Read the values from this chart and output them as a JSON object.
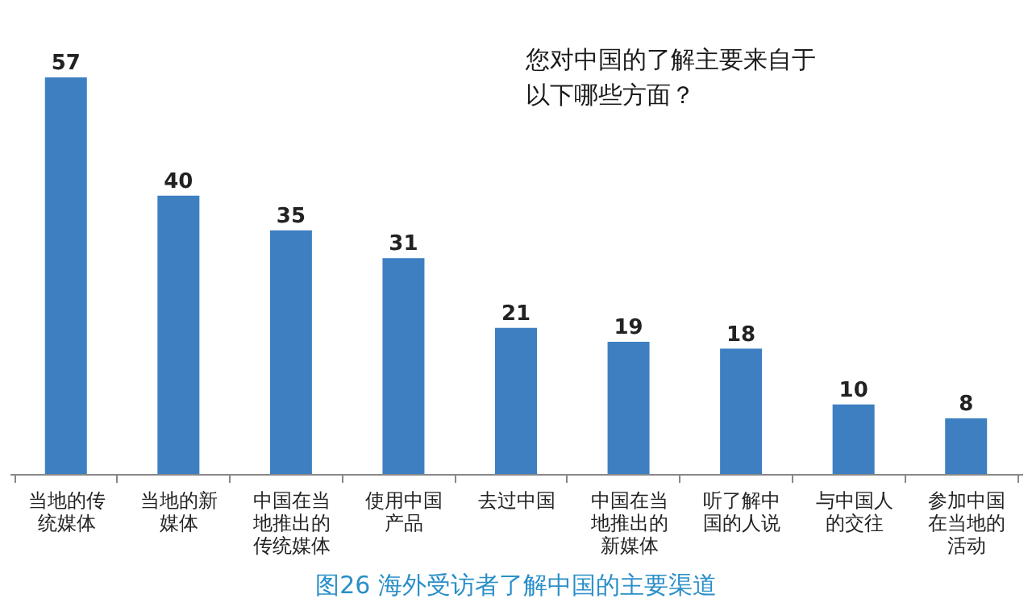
{
  "chart_data": {
    "type": "bar",
    "title": "图26  海外受访者了解中国的主要渠道",
    "categories": [
      "当地的传统媒体",
      "当地的新媒体",
      "中国在当地推出的传统媒体",
      "使用中国产品",
      "去过中国",
      "中国在当地推出的新媒体",
      "听了解中国的人说",
      "与中国人的交往",
      "参加中国在当地的活动"
    ],
    "values": [
      57,
      40,
      35,
      31,
      21,
      19,
      18,
      10,
      8
    ],
    "color": "#3d7fc1",
    "data_labels": true,
    "grid": false,
    "annotations": [
      "您对中国的了解主要来自于以下哪些方面？"
    ]
  }
}
